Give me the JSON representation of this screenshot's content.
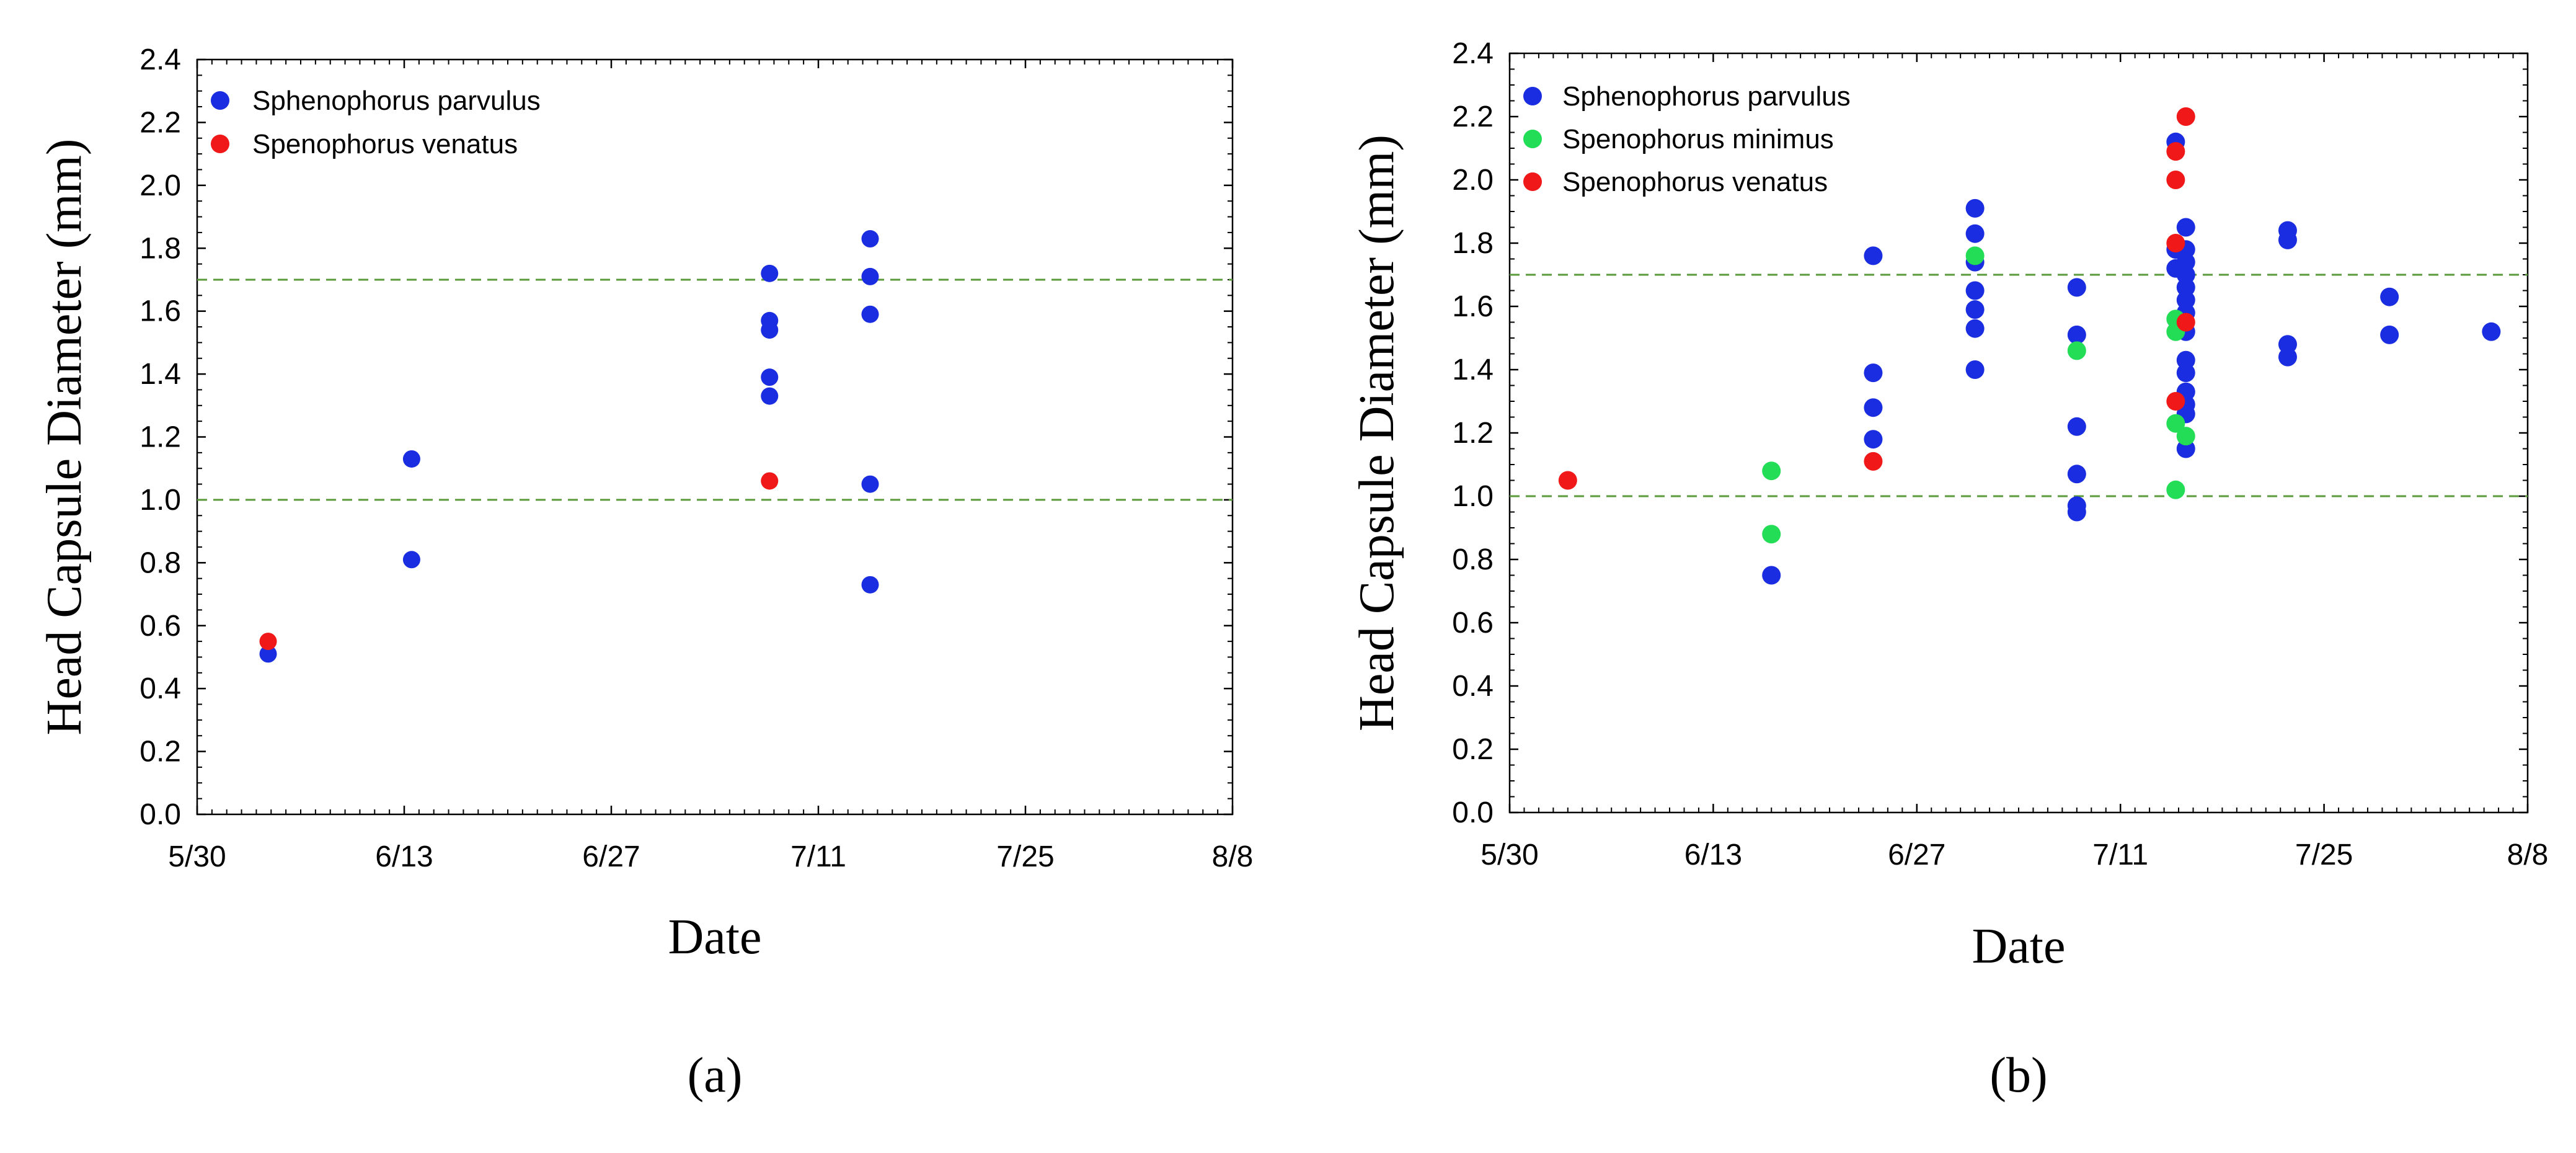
{
  "chart_data": [
    {
      "type": "scatter",
      "panel_label": "(a)",
      "ylabel": "Head Capsule Diameter (mm)",
      "xlabel": "Date",
      "ylim": [
        0,
        2.4
      ],
      "yticks": [
        "0.0",
        "0.2",
        "0.4",
        "0.6",
        "0.8",
        "1.0",
        "1.2",
        "1.4",
        "1.6",
        "1.8",
        "2.0",
        "2.2",
        "2.4"
      ],
      "xlim_day": [
        0,
        70
      ],
      "xticks": [
        {
          "day": 0,
          "label": "5/30"
        },
        {
          "day": 14,
          "label": "6/13"
        },
        {
          "day": 28,
          "label": "6/27"
        },
        {
          "day": 42,
          "label": "7/11"
        },
        {
          "day": 56,
          "label": "7/25"
        },
        {
          "day": 70,
          "label": "8/8"
        }
      ],
      "reference_lines": [
        1.0,
        1.7
      ],
      "reference_line_color": "#5a9a3a",
      "legend_position": "top-left",
      "series": [
        {
          "name": "Sphenophorus parvulus",
          "color": "#1a2de0",
          "points": [
            [
              4.8,
              0.51
            ],
            [
              14.5,
              1.13
            ],
            [
              14.5,
              0.81
            ],
            [
              38.7,
              1.72
            ],
            [
              38.7,
              1.57
            ],
            [
              38.7,
              1.54
            ],
            [
              38.7,
              1.39
            ],
            [
              38.7,
              1.33
            ],
            [
              45.5,
              1.83
            ],
            [
              45.5,
              1.71
            ],
            [
              45.5,
              1.59
            ],
            [
              45.5,
              1.05
            ],
            [
              45.5,
              0.73
            ]
          ]
        },
        {
          "name": "Spenophorus venatus",
          "color": "#f01818",
          "points": [
            [
              4.8,
              0.55
            ],
            [
              38.7,
              1.06
            ]
          ]
        }
      ]
    },
    {
      "type": "scatter",
      "panel_label": "(b)",
      "ylabel": "Head Capsule Diameter (mm)",
      "xlabel": "Date",
      "ylim": [
        0,
        2.4
      ],
      "yticks": [
        "0.0",
        "0.2",
        "0.4",
        "0.6",
        "0.8",
        "1.0",
        "1.2",
        "1.4",
        "1.6",
        "1.8",
        "2.0",
        "2.2",
        "2.4"
      ],
      "xlim_day": [
        0,
        70
      ],
      "xticks": [
        {
          "day": 0,
          "label": "5/30"
        },
        {
          "day": 14,
          "label": "6/13"
        },
        {
          "day": 28,
          "label": "6/27"
        },
        {
          "day": 42,
          "label": "7/11"
        },
        {
          "day": 56,
          "label": "7/25"
        },
        {
          "day": 70,
          "label": "8/8"
        }
      ],
      "reference_lines": [
        1.0,
        1.7
      ],
      "reference_line_color": "#5a9a3a",
      "legend_position": "top-left",
      "series": [
        {
          "name": "Sphenophorus parvulus",
          "color": "#1a2de0",
          "points": [
            [
              18,
              0.75
            ],
            [
              25,
              1.76
            ],
            [
              25,
              1.39
            ],
            [
              25,
              1.28
            ],
            [
              25,
              1.18
            ],
            [
              32,
              1.91
            ],
            [
              32,
              1.83
            ],
            [
              32,
              1.74
            ],
            [
              32,
              1.65
            ],
            [
              32,
              1.59
            ],
            [
              32,
              1.53
            ],
            [
              32,
              1.4
            ],
            [
              39,
              1.66
            ],
            [
              39,
              1.51
            ],
            [
              39,
              1.22
            ],
            [
              39,
              1.07
            ],
            [
              39,
              0.97
            ],
            [
              39,
              0.95
            ],
            [
              45.8,
              2.12
            ],
            [
              45.8,
              1.78
            ],
            [
              45.8,
              1.72
            ],
            [
              46.5,
              1.85
            ],
            [
              46.5,
              1.78
            ],
            [
              46.5,
              1.74
            ],
            [
              46.5,
              1.7
            ],
            [
              46.5,
              1.66
            ],
            [
              46.5,
              1.62
            ],
            [
              46.5,
              1.58
            ],
            [
              46.5,
              1.52
            ],
            [
              46.5,
              1.43
            ],
            [
              46.5,
              1.39
            ],
            [
              46.5,
              1.33
            ],
            [
              46.5,
              1.29
            ],
            [
              46.5,
              1.26
            ],
            [
              46.5,
              1.15
            ],
            [
              53.5,
              1.84
            ],
            [
              53.5,
              1.81
            ],
            [
              53.5,
              1.48
            ],
            [
              53.5,
              1.44
            ],
            [
              60.5,
              1.63
            ],
            [
              60.5,
              1.51
            ],
            [
              67.5,
              1.52
            ]
          ]
        },
        {
          "name": "Spenophorus minimus",
          "color": "#22dd55",
          "points": [
            [
              18,
              1.08
            ],
            [
              18,
              0.88
            ],
            [
              32,
              1.76
            ],
            [
              39,
              1.46
            ],
            [
              45.8,
              1.56
            ],
            [
              45.8,
              1.52
            ],
            [
              45.8,
              1.23
            ],
            [
              45.8,
              1.02
            ],
            [
              46.5,
              1.19
            ]
          ]
        },
        {
          "name": "Spenophorus venatus",
          "color": "#f01818",
          "points": [
            [
              4,
              1.05
            ],
            [
              25,
              1.11
            ],
            [
              45.8,
              2.09
            ],
            [
              45.8,
              2.0
            ],
            [
              45.8,
              1.8
            ],
            [
              45.8,
              1.3
            ],
            [
              46.5,
              2.2
            ],
            [
              46.5,
              1.55
            ]
          ]
        }
      ]
    }
  ]
}
